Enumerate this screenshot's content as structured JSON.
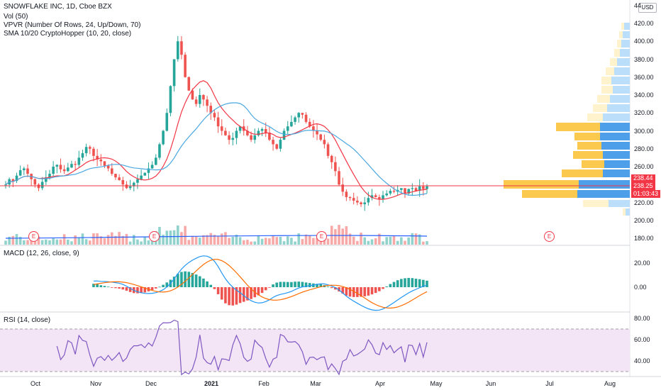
{
  "header": {
    "symbol_line": "SNOWFLAKE INC, 1D, Cboe BZX",
    "indicators": [
      "Vol (50)",
      "VPVR (Number Of Rows, 24, Up/Down, 70)",
      "SMA 10/20 CryptoHopper (10, 20, close)"
    ]
  },
  "currency_button": "USD",
  "price_axis_ticks": [
    "420.00",
    "400.00",
    "380.00",
    "360.00",
    "340.00",
    "320.00",
    "300.00",
    "280.00",
    "260.00",
    "240.00",
    "220.00",
    "200.00",
    "180.00"
  ],
  "price_axis_top": "44",
  "price_badges": {
    "last_red": "238.44",
    "current_blue": "238.25",
    "countdown": "01:03:43"
  },
  "earnings_marker": "E",
  "macd": {
    "label": "MACD (12, 26, close, 9)",
    "ticks": [
      "20.00",
      "0.00"
    ]
  },
  "rsi": {
    "label": "RSI (14, close)",
    "ticks": [
      "80.00",
      "60.00",
      "40.00"
    ]
  },
  "x_axis": {
    "labels": [
      {
        "text": "Oct",
        "bold": false
      },
      {
        "text": "Nov",
        "bold": false
      },
      {
        "text": "Dec",
        "bold": false
      },
      {
        "text": "2021",
        "bold": true
      },
      {
        "text": "Feb",
        "bold": false
      },
      {
        "text": "Mar",
        "bold": false
      },
      {
        "text": "Apr",
        "bold": false
      },
      {
        "text": "May",
        "bold": false
      },
      {
        "text": "Jun",
        "bold": false
      },
      {
        "text": "Jul",
        "bold": false
      },
      {
        "text": "Aug",
        "bold": false
      }
    ]
  },
  "colors": {
    "up": "#26a69a",
    "down": "#ef5350",
    "sma_fast": "#f23645",
    "sma_slow": "#4aa8e0",
    "vol_avg": "#2962ff",
    "macd": "#2196f3",
    "signal": "#ff6d00",
    "rsi": "#7e57c2",
    "rsi_band": "#f3e5f5",
    "vpvr_up": "#4c9fe8",
    "vpvr_down": "#fbc94e"
  },
  "chart_data": {
    "type": "candlestick",
    "price_closes": [
      240,
      246,
      244,
      250,
      256,
      258,
      252,
      246,
      240,
      236,
      243,
      248,
      252,
      260,
      262,
      257,
      255,
      259,
      263,
      262,
      270,
      275,
      282,
      280,
      272,
      268,
      266,
      261,
      258,
      252,
      248,
      245,
      240,
      236,
      238,
      242,
      246,
      250,
      253,
      258,
      262,
      270,
      285,
      300,
      320,
      350,
      380,
      400,
      385,
      360,
      345,
      335,
      330,
      340,
      335,
      328,
      320,
      315,
      305,
      300,
      295,
      290,
      292,
      300,
      305,
      300,
      295,
      290,
      295,
      300,
      302,
      298,
      290,
      285,
      280,
      290,
      300,
      305,
      310,
      315,
      320,
      318,
      310,
      305,
      300,
      296,
      290,
      285,
      272,
      265,
      255,
      240,
      232,
      226,
      225,
      222,
      220,
      218,
      220,
      225,
      228,
      226,
      224,
      228,
      230,
      233,
      232,
      234,
      236,
      230,
      235,
      236,
      233,
      238,
      235,
      238
    ],
    "vpvr_rows_price_levels": [
      180,
      200,
      220,
      238,
      260,
      280,
      300,
      320,
      340,
      360,
      380,
      400,
      420
    ],
    "macd_range": [
      -20,
      30
    ],
    "rsi_range": [
      20,
      80
    ]
  }
}
